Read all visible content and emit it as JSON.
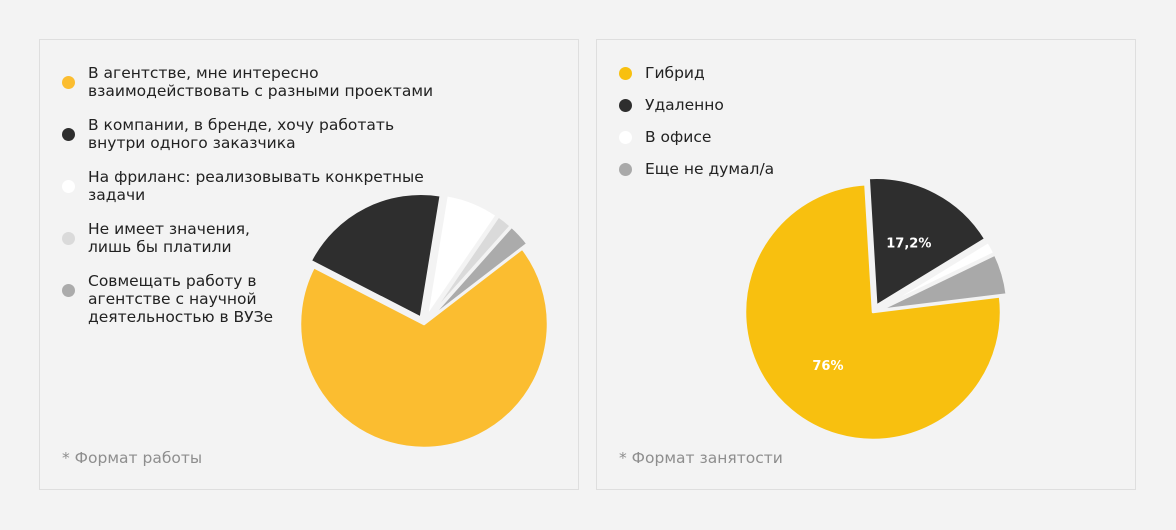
{
  "chart_data": [
    {
      "type": "pie",
      "title": "",
      "footnote": "* Формат работы",
      "legend_position": "left",
      "slices": [
        {
          "label": "В агентстве, мне интересно взаимодействовать с разными проектами",
          "value": 68,
          "color": "#fbbd30",
          "exploded": false,
          "show_label": false
        },
        {
          "label": "В компании, в бренде, хочу работать внутри одного заказчика",
          "value": 20,
          "color": "#2e2e2e",
          "exploded": true,
          "show_label": false
        },
        {
          "label": "На фриланс: реализовывать конкретные задачи",
          "value": 7,
          "color": "#ffffff",
          "exploded": true,
          "show_label": false
        },
        {
          "label": "Не имеет значения, лишь бы платили",
          "value": 2,
          "color": "#dadada",
          "exploded": true,
          "show_label": false
        },
        {
          "label": "Совмещать работу в агентстве с научной деятельностью в ВУЗе",
          "value": 3,
          "color": "#ababab",
          "exploded": true,
          "show_label": false
        }
      ]
    },
    {
      "type": "pie",
      "title": "",
      "footnote": "* Формат занятости",
      "legend_position": "top-left",
      "slices": [
        {
          "label": "Гибрид",
          "value": 76,
          "color": "#f8c00f",
          "exploded": false,
          "show_label": true,
          "display": "76%",
          "label_color": "#ffffff"
        },
        {
          "label": "Удаленно",
          "value": 17.2,
          "color": "#2e2e2e",
          "exploded": true,
          "show_label": true,
          "display": "17,2%",
          "label_color": "#ffffff"
        },
        {
          "label": "В офисе",
          "value": 1.6,
          "color": "#ffffff",
          "exploded": true,
          "show_label": false
        },
        {
          "label": "Еще не думал/а",
          "value": 5.2,
          "color": "#a9a9a9",
          "exploded": true,
          "show_label": false
        }
      ]
    }
  ]
}
